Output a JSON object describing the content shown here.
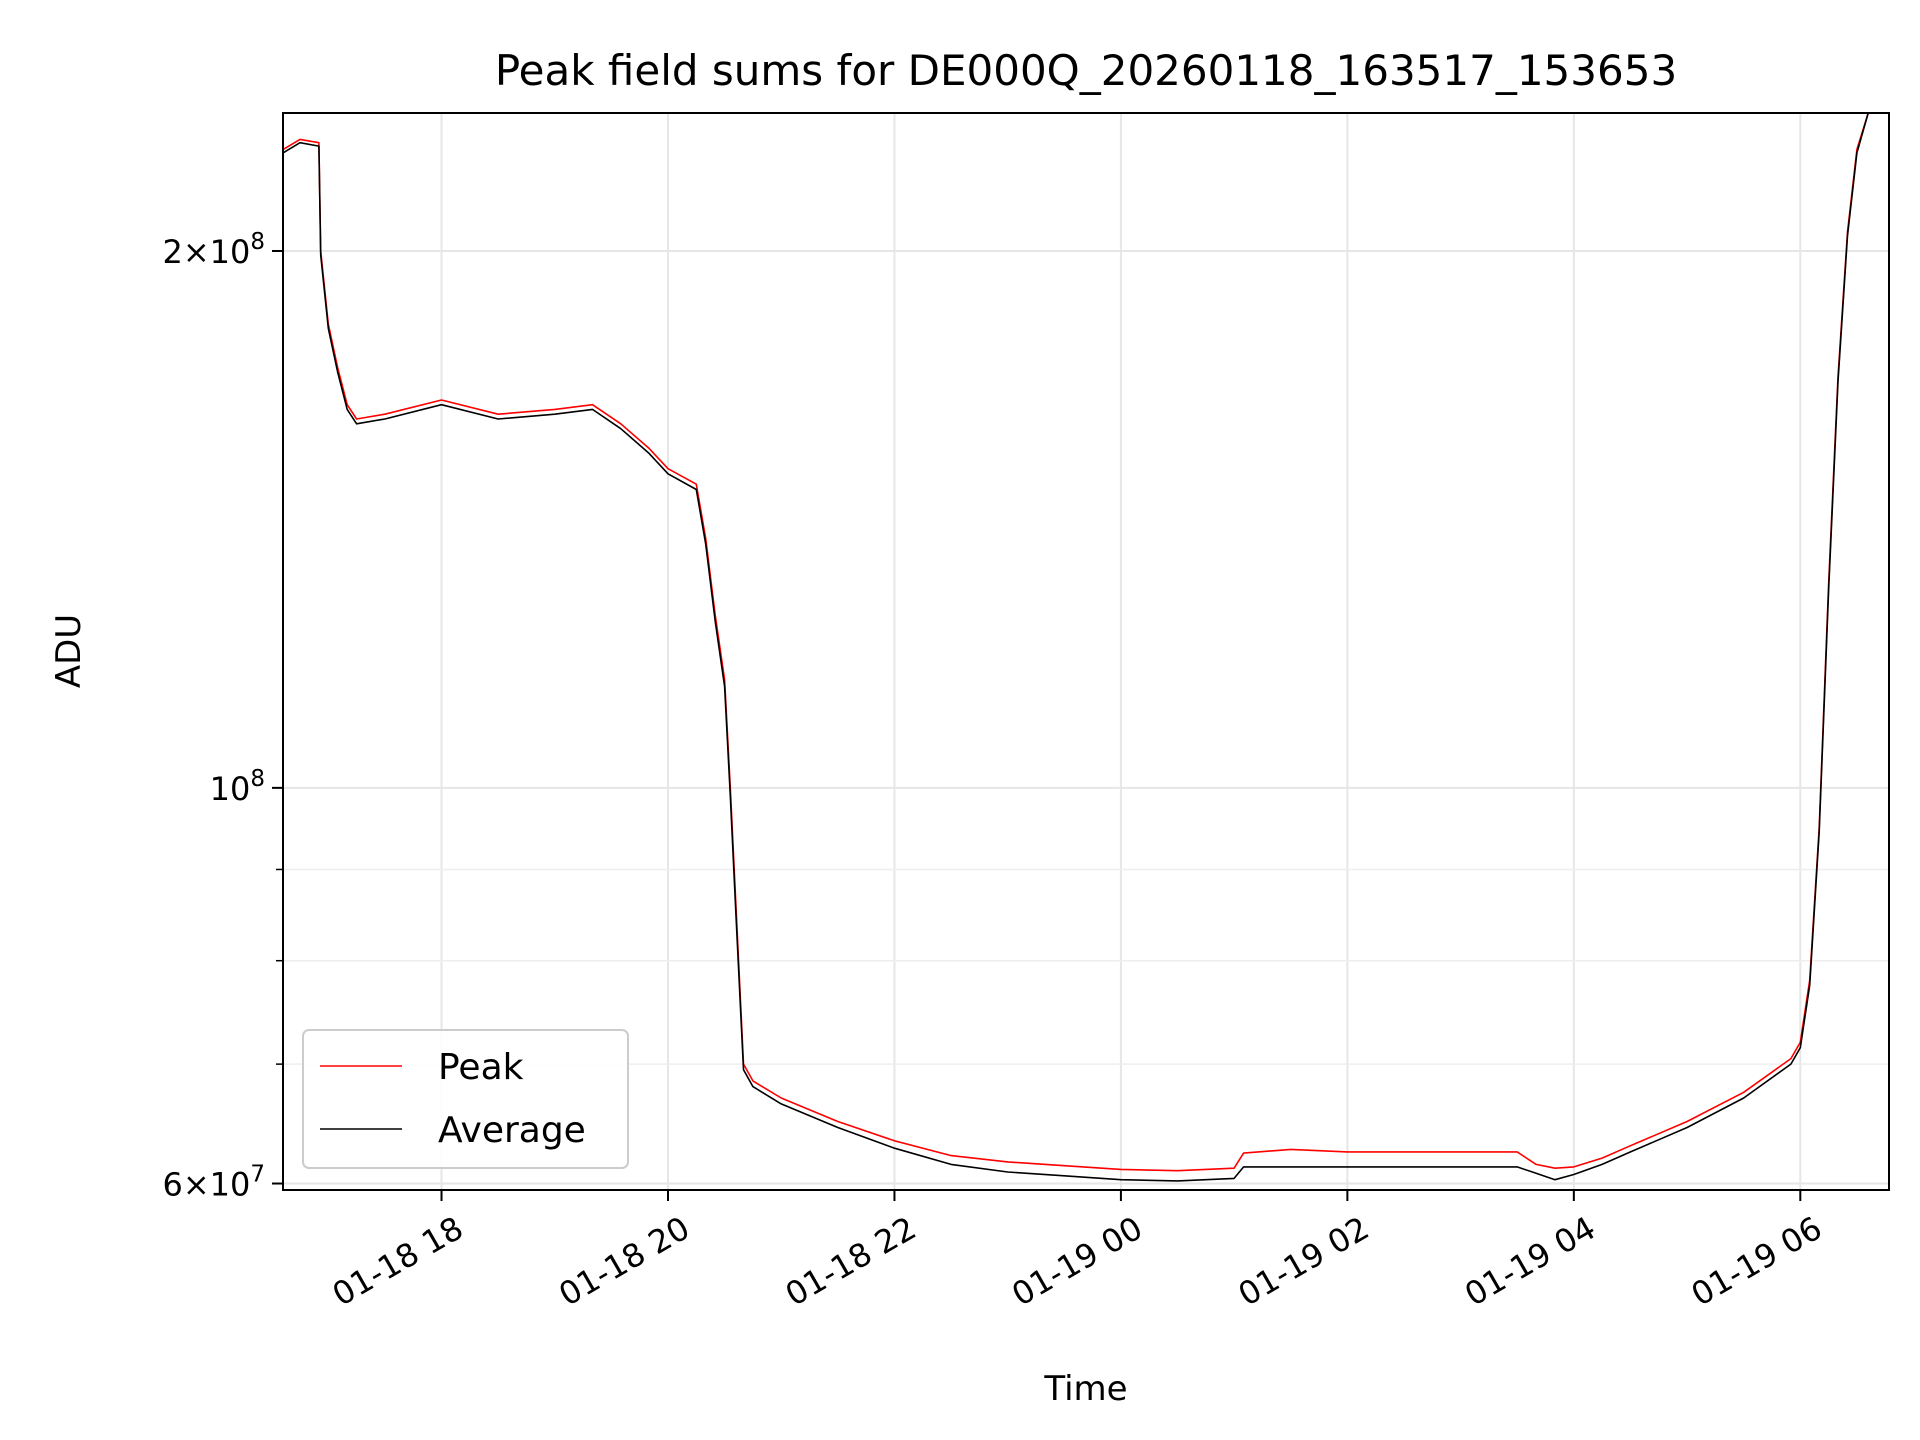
{
  "chart_data": {
    "type": "line",
    "title": "Peak field sums for DE000Q_20260118_163517_153653",
    "xlabel": "Time",
    "ylabel": "ADU",
    "x_axis_type": "datetime",
    "xlim": [
      "2026-01-18 16:36",
      "2026-01-19 06:47"
    ],
    "ylim": [
      59500000,
      239000000
    ],
    "yscale": "log",
    "grid": true,
    "legend_position": "lower-left",
    "x_ticks": [
      "2026-01-18 18:00",
      "2026-01-18 20:00",
      "2026-01-18 22:00",
      "2026-01-19 00:00",
      "2026-01-19 02:00",
      "2026-01-19 04:00",
      "2026-01-19 06:00"
    ],
    "x_tick_labels": [
      "01-18 18",
      "01-18 20",
      "01-18 22",
      "01-19 00",
      "01-19 02",
      "01-19 04",
      "01-19 06"
    ],
    "y_ticks": [
      60000000,
      100000000,
      200000000
    ],
    "y_tick_labels": [
      {
        "mantissa": "6",
        "exponent": "7"
      },
      {
        "mantissa": "",
        "exponent": "8"
      },
      {
        "mantissa": "2",
        "exponent": "8"
      }
    ],
    "y_minor_ticks": [
      70000000,
      80000000,
      90000000
    ],
    "series": [
      {
        "name": "Peak",
        "color": "#ff0000",
        "x": [
          "2026-01-18 16:36",
          "2026-01-18 16:45",
          "2026-01-18 16:55",
          "2026-01-18 16:56",
          "2026-01-18 17:00",
          "2026-01-18 17:05",
          "2026-01-18 17:10",
          "2026-01-18 17:15",
          "2026-01-18 17:30",
          "2026-01-18 18:00",
          "2026-01-18 18:30",
          "2026-01-18 19:00",
          "2026-01-18 19:20",
          "2026-01-18 19:35",
          "2026-01-18 19:50",
          "2026-01-18 20:00",
          "2026-01-18 20:15",
          "2026-01-18 20:20",
          "2026-01-18 20:25",
          "2026-01-18 20:30",
          "2026-01-18 20:33",
          "2026-01-18 20:36",
          "2026-01-18 20:40",
          "2026-01-18 20:45",
          "2026-01-18 21:00",
          "2026-01-18 21:30",
          "2026-01-18 22:00",
          "2026-01-18 22:30",
          "2026-01-18 23:00",
          "2026-01-18 23:30",
          "2026-01-19 00:00",
          "2026-01-19 00:30",
          "2026-01-19 01:00",
          "2026-01-19 01:05",
          "2026-01-19 01:30",
          "2026-01-19 02:00",
          "2026-01-19 02:30",
          "2026-01-19 03:00",
          "2026-01-19 03:30",
          "2026-01-19 03:40",
          "2026-01-19 03:50",
          "2026-01-19 04:00",
          "2026-01-19 04:15",
          "2026-01-19 04:30",
          "2026-01-19 05:00",
          "2026-01-19 05:30",
          "2026-01-19 05:55",
          "2026-01-19 06:00",
          "2026-01-19 06:05",
          "2026-01-19 06:10",
          "2026-01-19 06:15",
          "2026-01-19 06:20",
          "2026-01-19 06:25",
          "2026-01-19 06:30",
          "2026-01-19 06:36"
        ],
        "values": [
          228000000,
          231000000,
          230000000,
          200000000,
          182000000,
          172000000,
          164000000,
          161000000,
          162000000,
          165000000,
          162000000,
          163000000,
          164000000,
          160000000,
          155000000,
          151000000,
          148000000,
          138000000,
          125000000,
          115000000,
          100000000,
          86000000,
          70000000,
          68500000,
          67000000,
          65000000,
          63400000,
          62200000,
          61700000,
          61400000,
          61100000,
          61000000,
          61200000,
          62400000,
          62700000,
          62500000,
          62500000,
          62500000,
          62500000,
          61500000,
          61200000,
          61300000,
          62000000,
          63000000,
          65000000,
          67500000,
          70500000,
          72000000,
          78000000,
          95000000,
          130000000,
          170000000,
          205000000,
          228000000,
          239000000
        ]
      },
      {
        "name": "Average",
        "color": "#000000",
        "x": [
          "2026-01-18 16:36",
          "2026-01-18 16:45",
          "2026-01-18 16:55",
          "2026-01-18 16:56",
          "2026-01-18 17:00",
          "2026-01-18 17:05",
          "2026-01-18 17:10",
          "2026-01-18 17:15",
          "2026-01-18 17:30",
          "2026-01-18 18:00",
          "2026-01-18 18:30",
          "2026-01-18 19:00",
          "2026-01-18 19:20",
          "2026-01-18 19:35",
          "2026-01-18 19:50",
          "2026-01-18 20:00",
          "2026-01-18 20:15",
          "2026-01-18 20:20",
          "2026-01-18 20:25",
          "2026-01-18 20:30",
          "2026-01-18 20:33",
          "2026-01-18 20:36",
          "2026-01-18 20:40",
          "2026-01-18 20:45",
          "2026-01-18 21:00",
          "2026-01-18 21:30",
          "2026-01-18 22:00",
          "2026-01-18 22:30",
          "2026-01-18 23:00",
          "2026-01-18 23:30",
          "2026-01-19 00:00",
          "2026-01-19 00:30",
          "2026-01-19 01:00",
          "2026-01-19 01:05",
          "2026-01-19 01:30",
          "2026-01-19 02:00",
          "2026-01-19 02:30",
          "2026-01-19 03:00",
          "2026-01-19 03:30",
          "2026-01-19 03:40",
          "2026-01-19 03:50",
          "2026-01-19 04:00",
          "2026-01-19 04:15",
          "2026-01-19 04:30",
          "2026-01-19 05:00",
          "2026-01-19 05:30",
          "2026-01-19 05:55",
          "2026-01-19 06:00",
          "2026-01-19 06:05",
          "2026-01-19 06:10",
          "2026-01-19 06:15",
          "2026-01-19 06:20",
          "2026-01-19 06:25",
          "2026-01-19 06:30",
          "2026-01-19 06:36"
        ],
        "values": [
          227000000,
          230000000,
          229000000,
          199000000,
          181000000,
          171000000,
          163000000,
          160000000,
          161000000,
          164000000,
          161000000,
          162000000,
          163000000,
          159000000,
          154000000,
          150000000,
          147000000,
          137000000,
          124000000,
          114000000,
          99000000,
          85000000,
          69500000,
          68000000,
          66500000,
          64500000,
          62800000,
          61500000,
          60900000,
          60600000,
          60300000,
          60200000,
          60400000,
          61300000,
          61300000,
          61300000,
          61300000,
          61300000,
          61300000,
          60800000,
          60300000,
          60700000,
          61500000,
          62500000,
          64500000,
          67000000,
          70000000,
          71500000,
          77500000,
          94500000,
          129000000,
          169000000,
          204000000,
          227000000,
          239000000
        ]
      }
    ]
  }
}
